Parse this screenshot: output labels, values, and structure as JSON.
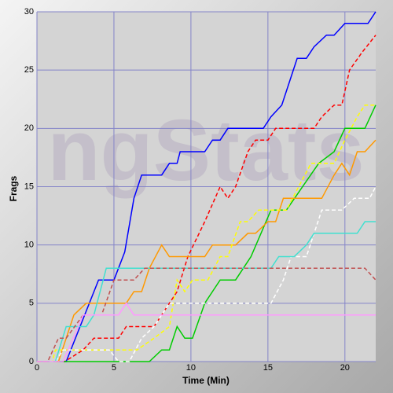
{
  "chart_data": {
    "type": "line",
    "watermark": "ngStats",
    "xlabel": "Time (Min)",
    "ylabel": "Frags",
    "xlim": [
      0,
      22
    ],
    "ylim": [
      0,
      30
    ],
    "xticks": [
      0,
      5,
      10,
      15,
      20
    ],
    "yticks": [
      0,
      5,
      10,
      15,
      20,
      25,
      30
    ],
    "grid": true,
    "series": [
      {
        "color": "#0000ff",
        "dashed": false,
        "x": [
          0,
          1.9,
          4.0,
          5.0,
          5.7,
          6.3,
          6.8,
          8.1,
          8.6,
          9.1,
          9.3,
          10.9,
          11.4,
          11.9,
          12.4,
          14.7,
          15.2,
          15.9,
          16.4,
          16.9,
          17.5,
          18.0,
          18.8,
          19.3,
          20.0,
          21.5,
          22.0
        ],
        "values": [
          0,
          0,
          7,
          7,
          9.4,
          14,
          16,
          16,
          17,
          17,
          18,
          18,
          19,
          19,
          20,
          20,
          21,
          22,
          24,
          26,
          26,
          27,
          28,
          28,
          29,
          29,
          30
        ]
      },
      {
        "color": "#ff0000",
        "dashed": true,
        "x": [
          0,
          1.8,
          3.0,
          3.7,
          5.3,
          5.8,
          7.6,
          9.1,
          9.8,
          10.9,
          11.9,
          12.4,
          12.9,
          13.7,
          14.2,
          15.0,
          15.5,
          18.0,
          18.5,
          19.3,
          19.8,
          20.3,
          21.1,
          22.0
        ],
        "values": [
          0,
          0,
          1,
          2,
          2,
          3,
          3,
          6,
          9,
          12,
          15,
          14,
          15,
          18,
          19,
          19,
          20,
          20,
          21,
          22,
          22,
          25,
          26.5,
          28
        ]
      },
      {
        "color": "#00cc00",
        "dashed": false,
        "x": [
          0,
          7.3,
          8.1,
          8.6,
          9.1,
          9.6,
          10.1,
          10.9,
          11.4,
          11.9,
          12.9,
          13.9,
          15.2,
          16.2,
          18.3,
          19.3,
          20.0,
          21.3,
          22.0
        ],
        "values": [
          0,
          0,
          1,
          1,
          3,
          2,
          2,
          5,
          6,
          7,
          7,
          9,
          13,
          13,
          17,
          18,
          20,
          20,
          22
        ]
      },
      {
        "color": "#ff9900",
        "dashed": false,
        "x": [
          0,
          1.4,
          2.4,
          3.2,
          5.8,
          6.3,
          6.8,
          7.3,
          8.1,
          8.6,
          10.9,
          11.4,
          12.9,
          13.7,
          14.2,
          15.0,
          15.5,
          16.0,
          18.5,
          19.3,
          19.8,
          20.3,
          20.8,
          21.3,
          22.0
        ],
        "values": [
          0,
          0,
          4,
          5,
          5,
          6,
          6,
          8,
          10,
          9,
          9,
          10,
          10,
          11,
          11,
          12,
          12,
          14,
          14,
          16,
          17,
          16,
          18,
          18,
          19
        ]
      },
      {
        "color": "#ffff00",
        "dashed": true,
        "x": [
          0,
          1.0,
          1.2,
          6.5,
          7.6,
          8.6,
          9.1,
          9.6,
          10.1,
          11.1,
          11.9,
          12.4,
          13.2,
          13.7,
          14.4,
          16.2,
          17.0,
          17.8,
          19.3,
          20.0,
          20.8,
          21.3,
          22.0
        ],
        "values": [
          0,
          0,
          1,
          1,
          2,
          3,
          7,
          6,
          7,
          7,
          9,
          9,
          12,
          12,
          13,
          13,
          15,
          17,
          17,
          19,
          21,
          22,
          22
        ]
      },
      {
        "color": "#ffffff",
        "dashed": true,
        "x": [
          0,
          1.2,
          1.7,
          4.7,
          5.3,
          6.0,
          6.8,
          7.6,
          8.6,
          15.2,
          16.0,
          16.5,
          17.5,
          18.5,
          19.8,
          20.6,
          21.6,
          22.0
        ],
        "values": [
          0,
          0,
          1,
          1,
          0,
          0,
          2,
          3,
          5,
          5,
          7,
          9,
          9,
          13,
          13,
          14,
          14,
          15
        ]
      },
      {
        "color": "#40e0d0",
        "dashed": false,
        "x": [
          0,
          1.2,
          1.9,
          3.2,
          3.7,
          4.5,
          15.2,
          15.7,
          16.7,
          17.5,
          18.0,
          20.8,
          21.3,
          22.0
        ],
        "values": [
          0,
          0,
          3,
          3,
          4,
          8,
          8,
          9,
          9,
          10,
          11,
          11,
          12,
          12
        ]
      },
      {
        "color": "#c05050",
        "dashed": true,
        "x": [
          0,
          0.7,
          1.4,
          1.9,
          3.0,
          4.2,
          5.0,
          6.3,
          7.0,
          21.3,
          22.0
        ],
        "values": [
          0,
          0,
          2,
          2,
          4,
          4,
          7,
          7,
          8,
          8,
          7
        ]
      },
      {
        "color": "#ff99ff",
        "dashed": false,
        "x": [
          0,
          1.7,
          3.0,
          5.3,
          5.8,
          6.3,
          22.0
        ],
        "values": [
          0,
          0,
          4,
          4,
          5,
          4,
          4
        ]
      }
    ]
  }
}
